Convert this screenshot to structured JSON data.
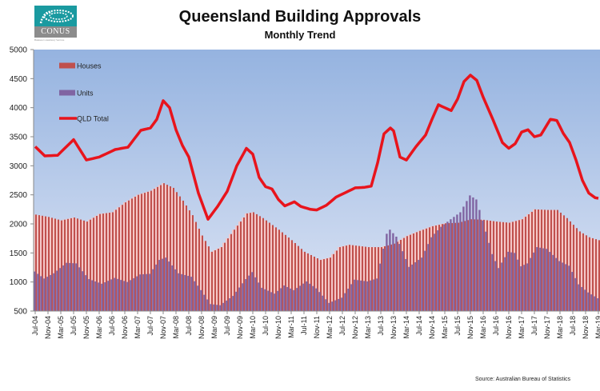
{
  "logo": {
    "name": "CONUS",
    "tagline": "Business Consultancy Services"
  },
  "chart_data": {
    "type": "bar+line",
    "title": "Queensland Building Approvals",
    "subtitle": "Monthly Trend",
    "source": "Source: Australian Bureau of Statistics",
    "ylim": [
      500,
      5000
    ],
    "yticks": [
      500,
      1000,
      1500,
      2000,
      2500,
      3000,
      3500,
      4000,
      4500,
      5000
    ],
    "xtick_labels": [
      "Jul-04",
      "Nov-04",
      "Mar-05",
      "Jul-05",
      "Nov-05",
      "Mar-06",
      "Jul-06",
      "Nov-06",
      "Mar-07",
      "Jul-07",
      "Nov-07",
      "Mar-08",
      "Jul-08",
      "Nov-08",
      "Mar-09",
      "Jul-09",
      "Nov-09",
      "Mar-10",
      "Jul-10",
      "Nov-10",
      "Mar-11",
      "Jul-11",
      "Nov-11",
      "Mar-12",
      "Jul-12",
      "Nov-12",
      "Mar-13",
      "Jul-13",
      "Nov-13",
      "Mar-14",
      "Jul-14",
      "Nov-14",
      "Mar-15",
      "Jul-15",
      "Nov-15",
      "Mar-16",
      "Jul-16",
      "Nov-16",
      "Mar-17",
      "Jul-17",
      "Nov-17",
      "Mar-18",
      "Jul-18",
      "Nov-18",
      "Mar-19"
    ],
    "x_start": "Jul-04",
    "x_end": "Mar-19",
    "legend": {
      "placement": "top-left",
      "entries": [
        "Houses",
        "Units",
        "QLD Total"
      ]
    },
    "grid": false,
    "colors": {
      "houses": "#c0504d",
      "houses_light": "#f4c7c7",
      "units": "#8064a2",
      "total": "#e8141c",
      "plot_top": "#95b3e0",
      "plot_bottom": "#dce4f4"
    },
    "anchors_note": "monthly values, one per month from Jul-04",
    "series": [
      {
        "name": "Houses",
        "type": "bar",
        "anchors": [
          [
            0,
            2160
          ],
          [
            4,
            2120
          ],
          [
            8,
            2060
          ],
          [
            12,
            2110
          ],
          [
            16,
            2040
          ],
          [
            20,
            2170
          ],
          [
            24,
            2200
          ],
          [
            28,
            2370
          ],
          [
            32,
            2500
          ],
          [
            36,
            2570
          ],
          [
            40,
            2700
          ],
          [
            43,
            2620
          ],
          [
            46,
            2400
          ],
          [
            49,
            2150
          ],
          [
            52,
            1800
          ],
          [
            55,
            1520
          ],
          [
            58,
            1600
          ],
          [
            62,
            1900
          ],
          [
            66,
            2180
          ],
          [
            68,
            2200
          ],
          [
            71,
            2100
          ],
          [
            76,
            1900
          ],
          [
            80,
            1720
          ],
          [
            84,
            1520
          ],
          [
            89,
            1380
          ],
          [
            92,
            1420
          ],
          [
            95,
            1600
          ],
          [
            98,
            1640
          ],
          [
            104,
            1600
          ],
          [
            108,
            1600
          ],
          [
            112,
            1660
          ],
          [
            116,
            1790
          ],
          [
            120,
            1880
          ],
          [
            124,
            1960
          ],
          [
            128,
            2010
          ],
          [
            132,
            2020
          ],
          [
            136,
            2080
          ],
          [
            140,
            2070
          ],
          [
            144,
            2040
          ],
          [
            148,
            2020
          ],
          [
            152,
            2080
          ],
          [
            156,
            2250
          ],
          [
            160,
            2240
          ],
          [
            163,
            2240
          ],
          [
            166,
            2100
          ],
          [
            170,
            1870
          ],
          [
            173,
            1770
          ],
          [
            176,
            1720
          ]
        ]
      },
      {
        "name": "Units",
        "type": "bar",
        "anchors": [
          [
            0,
            1180
          ],
          [
            3,
            1060
          ],
          [
            6,
            1150
          ],
          [
            10,
            1330
          ],
          [
            13,
            1320
          ],
          [
            17,
            1050
          ],
          [
            21,
            970
          ],
          [
            25,
            1070
          ],
          [
            29,
            1000
          ],
          [
            33,
            1130
          ],
          [
            36,
            1140
          ],
          [
            39,
            1380
          ],
          [
            41,
            1420
          ],
          [
            45,
            1150
          ],
          [
            49,
            1090
          ],
          [
            52,
            860
          ],
          [
            55,
            620
          ],
          [
            58,
            600
          ],
          [
            62,
            760
          ],
          [
            66,
            1050
          ],
          [
            68,
            1170
          ],
          [
            71,
            900
          ],
          [
            75,
            800
          ],
          [
            78,
            940
          ],
          [
            81,
            860
          ],
          [
            85,
            1010
          ],
          [
            88,
            890
          ],
          [
            92,
            640
          ],
          [
            96,
            730
          ],
          [
            100,
            1040
          ],
          [
            104,
            1010
          ],
          [
            107,
            1060
          ],
          [
            110,
            1830
          ],
          [
            111,
            1900
          ],
          [
            113,
            1780
          ],
          [
            115,
            1530
          ],
          [
            117,
            1260
          ],
          [
            121,
            1420
          ],
          [
            124,
            1770
          ],
          [
            127,
            1950
          ],
          [
            130,
            2080
          ],
          [
            133,
            2200
          ],
          [
            136,
            2490
          ],
          [
            138,
            2420
          ],
          [
            140,
            2060
          ],
          [
            143,
            1480
          ],
          [
            145,
            1240
          ],
          [
            148,
            1520
          ],
          [
            150,
            1500
          ],
          [
            152,
            1270
          ],
          [
            154,
            1320
          ],
          [
            157,
            1600
          ],
          [
            160,
            1570
          ],
          [
            164,
            1360
          ],
          [
            167,
            1280
          ],
          [
            170,
            960
          ],
          [
            173,
            820
          ],
          [
            176,
            720
          ]
        ]
      },
      {
        "name": "QLD Total",
        "type": "line",
        "anchors": [
          [
            0,
            3330
          ],
          [
            3,
            3170
          ],
          [
            7,
            3180
          ],
          [
            12,
            3450
          ],
          [
            16,
            3100
          ],
          [
            20,
            3150
          ],
          [
            25,
            3280
          ],
          [
            29,
            3320
          ],
          [
            33,
            3610
          ],
          [
            36,
            3650
          ],
          [
            38,
            3800
          ],
          [
            40,
            4120
          ],
          [
            42,
            4000
          ],
          [
            44,
            3620
          ],
          [
            46,
            3350
          ],
          [
            48,
            3150
          ],
          [
            51,
            2530
          ],
          [
            54,
            2080
          ],
          [
            57,
            2300
          ],
          [
            60,
            2560
          ],
          [
            63,
            3000
          ],
          [
            66,
            3300
          ],
          [
            68,
            3200
          ],
          [
            70,
            2800
          ],
          [
            72,
            2640
          ],
          [
            74,
            2600
          ],
          [
            76,
            2420
          ],
          [
            78,
            2310
          ],
          [
            81,
            2380
          ],
          [
            83,
            2300
          ],
          [
            86,
            2250
          ],
          [
            88,
            2240
          ],
          [
            91,
            2320
          ],
          [
            94,
            2460
          ],
          [
            97,
            2540
          ],
          [
            100,
            2620
          ],
          [
            103,
            2630
          ],
          [
            105,
            2650
          ],
          [
            107,
            3050
          ],
          [
            109,
            3550
          ],
          [
            111,
            3650
          ],
          [
            112,
            3600
          ],
          [
            114,
            3150
          ],
          [
            116,
            3100
          ],
          [
            119,
            3330
          ],
          [
            122,
            3530
          ],
          [
            124,
            3800
          ],
          [
            126,
            4050
          ],
          [
            128,
            4000
          ],
          [
            130,
            3950
          ],
          [
            132,
            4150
          ],
          [
            134,
            4450
          ],
          [
            136,
            4560
          ],
          [
            138,
            4470
          ],
          [
            140,
            4180
          ],
          [
            143,
            3800
          ],
          [
            146,
            3400
          ],
          [
            148,
            3300
          ],
          [
            150,
            3380
          ],
          [
            152,
            3580
          ],
          [
            154,
            3620
          ],
          [
            156,
            3500
          ],
          [
            158,
            3530
          ],
          [
            161,
            3800
          ],
          [
            163,
            3780
          ],
          [
            165,
            3560
          ],
          [
            167,
            3400
          ],
          [
            169,
            3100
          ],
          [
            171,
            2750
          ],
          [
            173,
            2530
          ],
          [
            175,
            2450
          ],
          [
            176,
            2440
          ]
        ]
      }
    ]
  }
}
